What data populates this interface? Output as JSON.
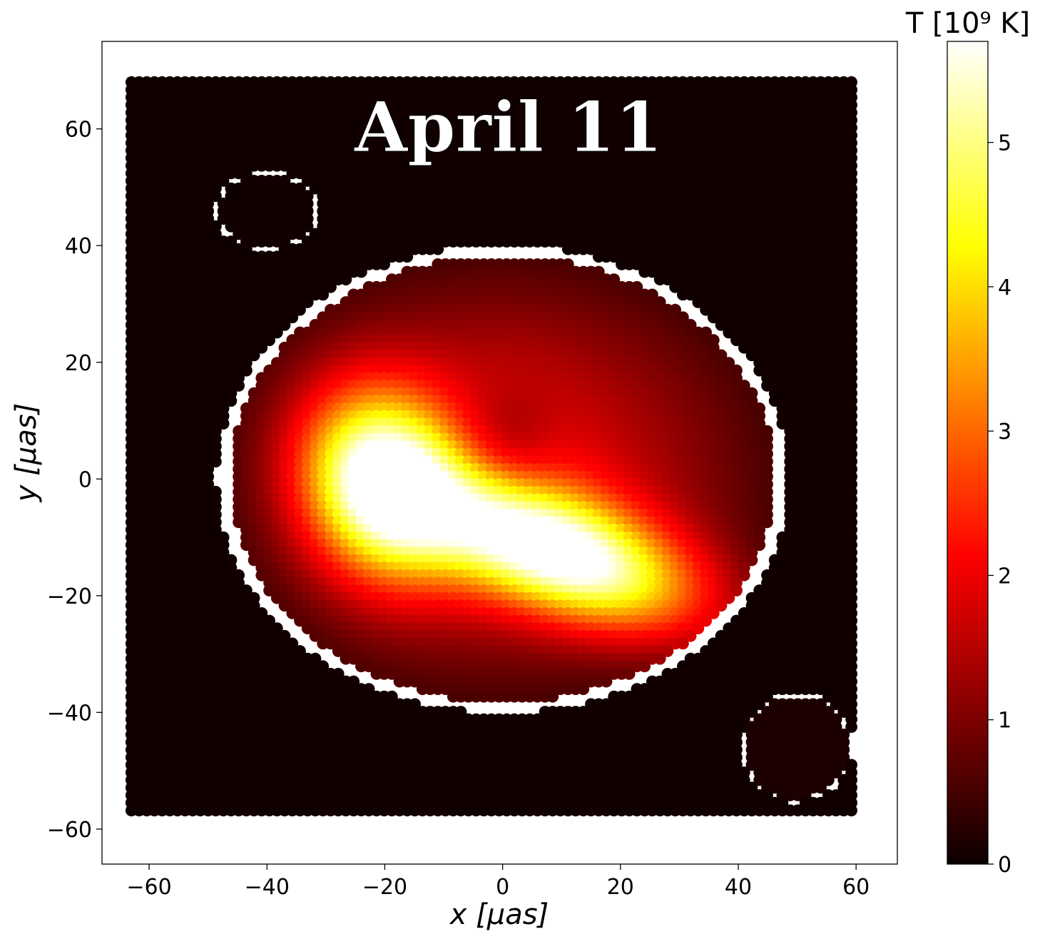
{
  "chart_data": {
    "type": "scatter",
    "title": "April 11",
    "xlabel": "x [μas]",
    "ylabel": "y [μas]",
    "xlim": [
      -68,
      67
    ],
    "ylim": [
      -66,
      75
    ],
    "x_ticks": [
      "−60",
      "−40",
      "−20",
      "0",
      "20",
      "40",
      "60"
    ],
    "x_tick_values": [
      -60,
      -40,
      -20,
      0,
      20,
      40,
      60
    ],
    "y_ticks": [
      "−60",
      "−40",
      "−20",
      "0",
      "20",
      "40",
      "60"
    ],
    "y_tick_values": [
      -60,
      -40,
      -20,
      0,
      20,
      40,
      60
    ],
    "grid": false,
    "colorbar": {
      "label": "T [10⁹ K]",
      "vmin": 0,
      "vmax": 5.7,
      "ticks": [
        "0",
        "1",
        "2",
        "3",
        "4",
        "5"
      ],
      "tick_values": [
        0,
        1,
        2,
        3,
        4,
        5
      ],
      "colormap": "hot"
    },
    "field": {
      "grid_x_range": [
        -63,
        60
      ],
      "grid_y_range": [
        -58,
        68
      ],
      "grid_step": 1.3,
      "background_T": 0.05,
      "features": [
        {
          "name": "bright blob left",
          "x": -20,
          "y": -1,
          "peak_T": 5.6
        },
        {
          "name": "bright crescent",
          "x": 10,
          "y": -13,
          "peak_T": 5.6
        },
        {
          "name": "central depression",
          "x": 3,
          "y": 11,
          "T": 1.4
        },
        {
          "name": "outer rim",
          "x": 0,
          "y": 0,
          "T": 0.5
        },
        {
          "name": "corner circle",
          "x": 50,
          "y": -46,
          "T": 0.15
        }
      ]
    }
  }
}
